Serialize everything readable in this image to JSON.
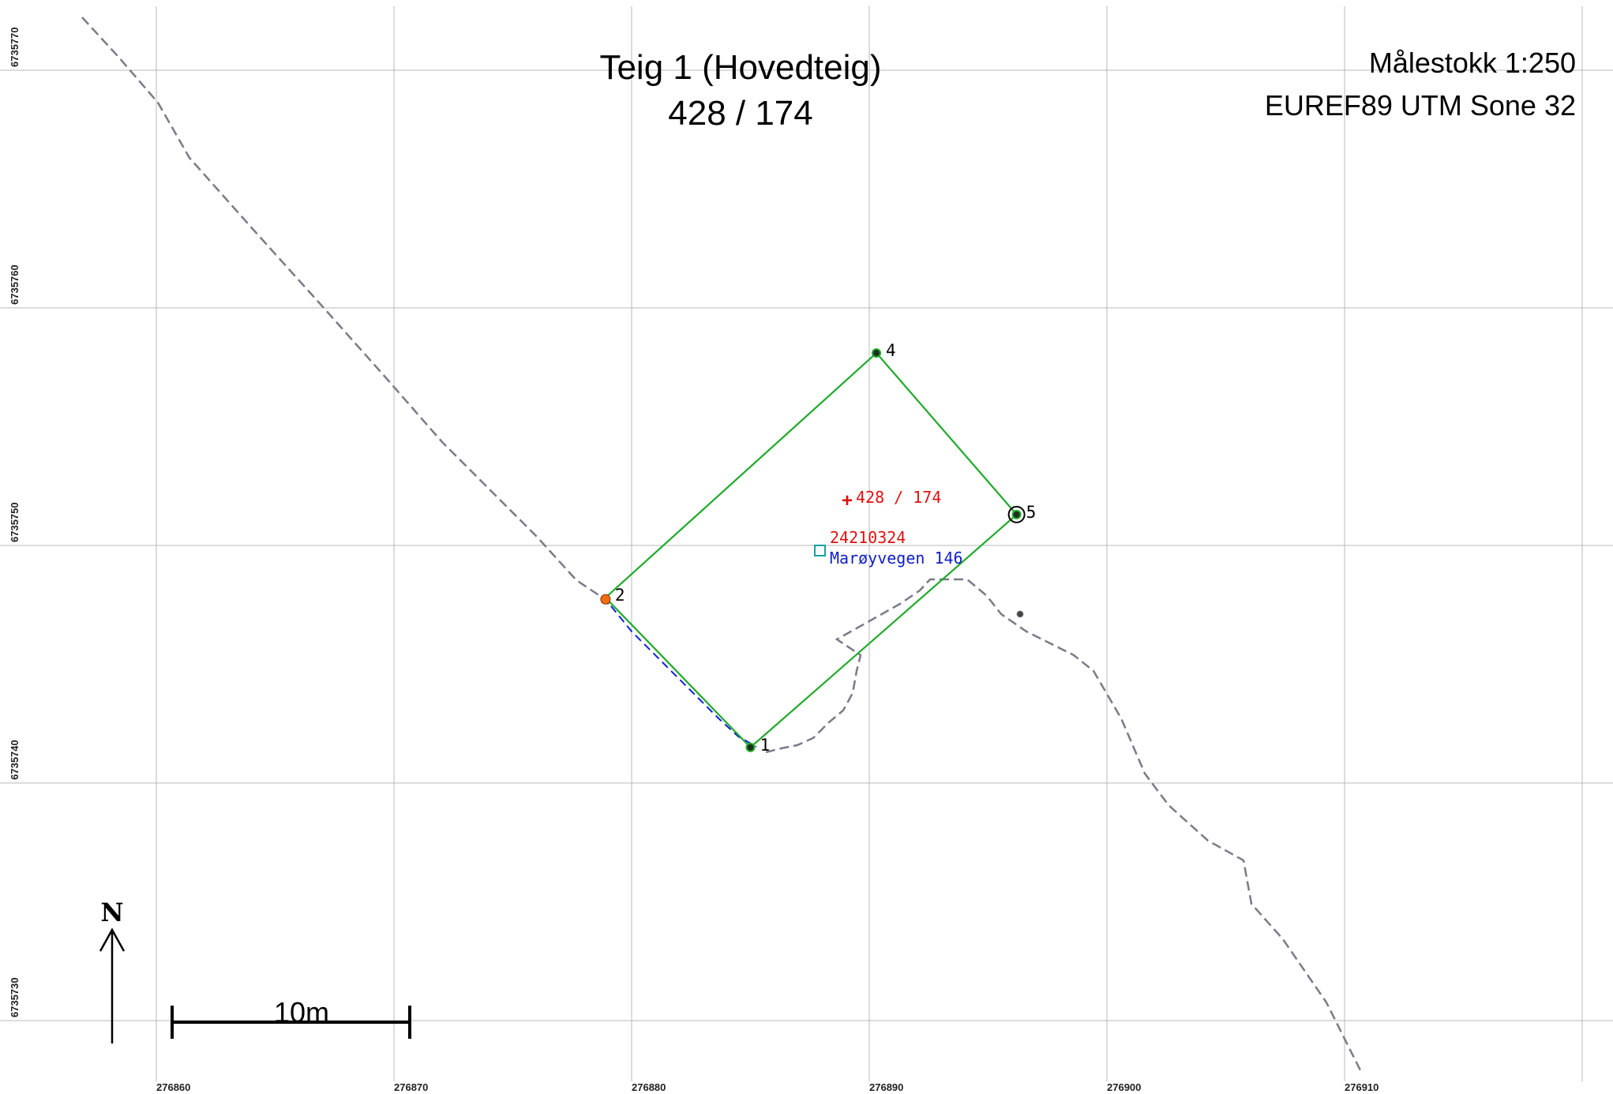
{
  "title": {
    "line1": "Teig 1 (Hovedteig)",
    "line2": "428 / 174"
  },
  "scale_info": {
    "scale": "Målestokk 1:250",
    "crs": "EUREF89 UTM Sone 32"
  },
  "grid": {
    "x_labels": [
      "276860",
      "276870",
      "276880",
      "276890",
      "276900",
      "276910"
    ],
    "y_labels": [
      "6735770",
      "6735760",
      "6735750",
      "6735740",
      "6735730"
    ]
  },
  "parcel": {
    "label": "428 / 174",
    "building_id": "24210324",
    "address": "Marøyvegen 146",
    "points": [
      {
        "id": "1",
        "label": "1",
        "east": 276885.0,
        "north": 6735741.5
      },
      {
        "id": "2",
        "label": "2",
        "east": 276878.9,
        "north": 6735747.8
      },
      {
        "id": "4",
        "label": "4",
        "east": 276890.3,
        "north": 6735758.1
      },
      {
        "id": "5",
        "label": "5",
        "east": 276896.2,
        "north": 6735751.3
      }
    ]
  },
  "north_arrow": {
    "label": "N"
  },
  "scale_bar": {
    "label": "10m",
    "length_m": 10
  },
  "colors": {
    "grid": "#b8b8b8",
    "parcel_boundary": "#1faa2a",
    "uncertain_boundary": "#1020e0",
    "road_edge": "#7a7a8a",
    "parcel_label": "#e01010",
    "address": "#1020c8"
  }
}
